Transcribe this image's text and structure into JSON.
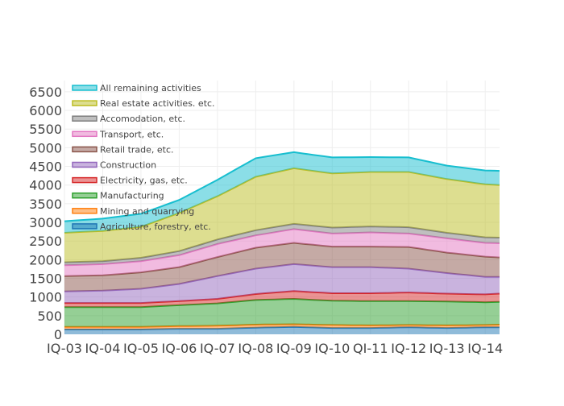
{
  "chart_data": {
    "type": "area",
    "stacked": true,
    "x_tick_labels": [
      "IQ-03",
      "IQ-04",
      "IQ-05",
      "IQ-06",
      "IQ-07",
      "IQ-08",
      "IQ-09",
      "IQ-10",
      "QI-11",
      "IQ-12",
      "IQ-13",
      "IQ-14"
    ],
    "quarters_per_tick": 4,
    "ylim": [
      0,
      6800
    ],
    "y_ticks": [
      0,
      500,
      1000,
      1500,
      2000,
      2500,
      3000,
      3500,
      4000,
      4500,
      5000,
      5500,
      6000,
      6500
    ],
    "grid": true,
    "legend_position": "top-left inside",
    "x_knots": [
      0,
      4,
      8,
      12,
      16,
      20,
      24,
      28,
      32,
      36,
      40,
      44,
      45.5
    ],
    "cumulative_knots": {
      "Agriculture, forestry, etc.": [
        130,
        130,
        130,
        150,
        150,
        180,
        200,
        170,
        170,
        190,
        170,
        190,
        190
      ],
      "Mining and quarrying": [
        200,
        200,
        200,
        220,
        230,
        260,
        270,
        250,
        240,
        250,
        240,
        250,
        260
      ],
      "Manufacturing": [
        730,
        730,
        730,
        780,
        830,
        920,
        950,
        900,
        890,
        890,
        880,
        860,
        870
      ],
      "Electricity, gas, etc.": [
        840,
        840,
        840,
        890,
        950,
        1080,
        1160,
        1100,
        1100,
        1120,
        1090,
        1070,
        1090
      ],
      "Construction": [
        1150,
        1170,
        1220,
        1350,
        1560,
        1760,
        1880,
        1800,
        1800,
        1760,
        1640,
        1540,
        1540
      ],
      "Retail trade, etc.": [
        1560,
        1580,
        1660,
        1800,
        2070,
        2320,
        2450,
        2350,
        2350,
        2340,
        2190,
        2080,
        2060
      ],
      "Transport, etc.": [
        1850,
        1880,
        1960,
        2120,
        2420,
        2650,
        2820,
        2700,
        2730,
        2700,
        2570,
        2450,
        2440
      ],
      "Accomodation, etc.": [
        1930,
        1960,
        2050,
        2230,
        2540,
        2790,
        2960,
        2860,
        2890,
        2870,
        2720,
        2600,
        2590
      ],
      "Real estate activities. etc.": [
        2720,
        2770,
        2880,
        3250,
        3700,
        4220,
        4450,
        4310,
        4350,
        4350,
        4160,
        4020,
        4000
      ],
      "All remaining activities": [
        3030,
        3100,
        3230,
        3600,
        4140,
        4720,
        4880,
        4740,
        4750,
        4740,
        4520,
        4390,
        4380
      ]
    },
    "series": [
      {
        "name": "Agriculture, forestry, etc.",
        "color": "#1f77b4"
      },
      {
        "name": "Mining and quarrying",
        "color": "#ff7f0e"
      },
      {
        "name": "Manufacturing",
        "color": "#2ca02c"
      },
      {
        "name": "Electricity, gas, etc.",
        "color": "#d62728"
      },
      {
        "name": "Construction",
        "color": "#9467bd"
      },
      {
        "name": "Retail trade, etc.",
        "color": "#8c564b"
      },
      {
        "name": "Transport, etc.",
        "color": "#e377c2"
      },
      {
        "name": "Accomodation, etc.",
        "color": "#7f7f7f"
      },
      {
        "name": "Real estate activities. etc.",
        "color": "#bcbd22"
      },
      {
        "name": "All remaining activities",
        "color": "#17becf"
      }
    ],
    "legend_order": [
      "All remaining activities",
      "Real estate activities. etc.",
      "Accomodation, etc.",
      "Transport, etc.",
      "Retail trade, etc.",
      "Construction",
      "Electricity, gas, etc.",
      "Manufacturing",
      "Mining and quarrying",
      "Agriculture, forestry, etc."
    ]
  }
}
